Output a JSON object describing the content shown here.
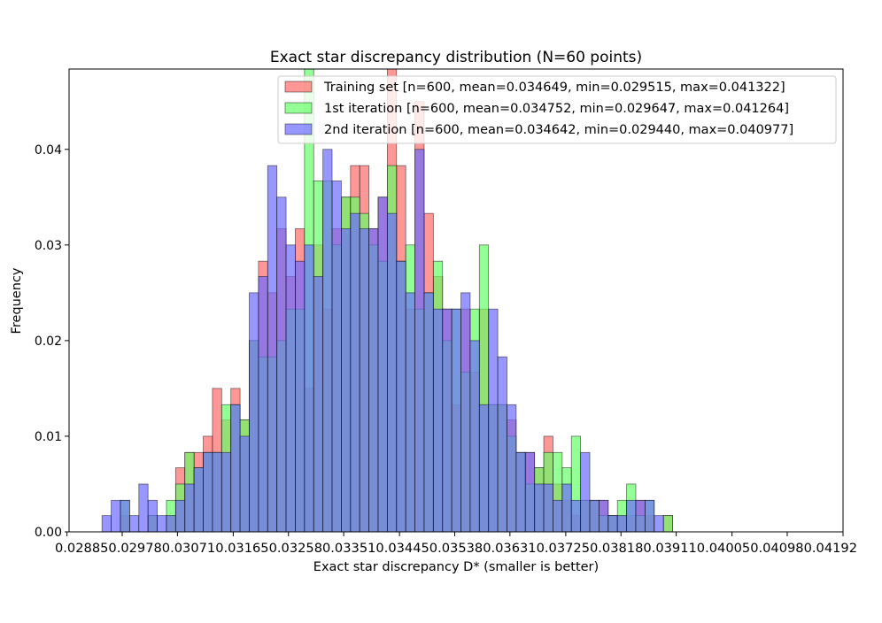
{
  "chart_data": {
    "type": "bar",
    "subtype": "overlaid-histogram",
    "title": "Exact star discrepancy distribution (N=60 points)",
    "xlabel": "Exact star discrepancy D* (smaller is better)",
    "ylabel": "Frequency",
    "xlim": [
      0.028885,
      0.04192
    ],
    "ylim": [
      0,
      0.0484
    ],
    "x_ticks": [
      "0.02885",
      "0.02978",
      "0.03071",
      "0.03165",
      "0.03258",
      "0.03351",
      "0.03445",
      "0.03538",
      "0.03631",
      "0.03725",
      "0.03818",
      "0.03911",
      "0.04005",
      "0.04098",
      "0.04192"
    ],
    "x_tick_values": [
      0.02885,
      0.02978,
      0.03071,
      0.03165,
      0.03258,
      0.03351,
      0.03445,
      0.03538,
      0.03631,
      0.03725,
      0.03818,
      0.03911,
      0.04005,
      0.04098,
      0.04192
    ],
    "x_tick_text": "0.028850.029780.030710.031650.032580.033510.034450.035380.036310.037250.038180.039110.040050.040980.04192",
    "y_ticks": [
      0.0,
      0.01,
      0.02,
      0.03,
      0.04
    ],
    "y_tick_labels": [
      "0.00",
      "0.01",
      "0.02",
      "0.03",
      "0.04"
    ],
    "legend_position": "top-right",
    "grid": false,
    "bin_start": 0.02944,
    "bin_width": 0.000155,
    "series": [
      {
        "name": "Training set [n=600, mean=0.034649, min=0.029515, max=0.041322]",
        "color": "#ff6b6b",
        "values": [
          0,
          0,
          0.0017,
          0,
          0,
          0.0017,
          0,
          0.0017,
          0.0067,
          0.0083,
          0.0083,
          0.01,
          0.015,
          0.0117,
          0.015,
          0.0117,
          0.02,
          0.0283,
          0.025,
          0.0317,
          0.0267,
          0.0317,
          0.015,
          0.03,
          0.0233,
          0.0317,
          0.035,
          0.0383,
          0.0383,
          0.0317,
          0.035,
          0.05,
          0.0383,
          0.0233,
          0.045,
          0.0333,
          0.0267,
          0.0233,
          0.0133,
          0.0233,
          0.0167,
          0.0233,
          0.0133,
          0.0133,
          0.0117,
          0.0083,
          0.0083,
          0.0067,
          0.01,
          0.005,
          0.0033,
          0.0017,
          0.0033,
          0.0033,
          0.0033,
          0.0017,
          0.0017,
          0.0017,
          0.0033,
          0.0017,
          0,
          0.0017,
          0
        ]
      },
      {
        "name": "1st iteration [n=600, mean=0.034752, min=0.029647, max=0.041264]",
        "color": "#66ff66",
        "values": [
          0,
          0,
          0.0033,
          0,
          0,
          0.0017,
          0,
          0.0033,
          0.005,
          0.0083,
          0.0067,
          0.0083,
          0.0083,
          0.0133,
          0.0133,
          0.0117,
          0.02,
          0.0183,
          0.0183,
          0.02,
          0.0233,
          0.0233,
          0.05,
          0.0367,
          0.0367,
          0.03,
          0.035,
          0.035,
          0.0333,
          0.03,
          0.0283,
          0.0383,
          0.0283,
          0.03,
          0.0233,
          0.025,
          0.0283,
          0.02,
          0.0233,
          0.0167,
          0.0233,
          0.03,
          0.0133,
          0.0133,
          0.01,
          0.0083,
          0.005,
          0.0067,
          0.0083,
          0.0083,
          0.0067,
          0.01,
          0.0033,
          0.0033,
          0.0017,
          0.0017,
          0.0033,
          0.005,
          0.0017,
          0.0033,
          0,
          0.0017,
          0
        ]
      },
      {
        "name": "2nd iteration [n=600, mean=0.034642, min=0.029440, max=0.040977]",
        "color": "#6b6bff",
        "values": [
          0.0017,
          0.0033,
          0.0033,
          0.0017,
          0.005,
          0.0033,
          0.0017,
          0.0017,
          0.0033,
          0.005,
          0.0067,
          0.0083,
          0.0083,
          0.0083,
          0.0133,
          0.01,
          0.025,
          0.0267,
          0.0383,
          0.035,
          0.03,
          0.0283,
          0.03,
          0.0267,
          0.04,
          0.0367,
          0.0317,
          0.0333,
          0.0317,
          0.0317,
          0.035,
          0.0333,
          0.0283,
          0.025,
          0.04,
          0.025,
          0.0233,
          0.0233,
          0.0233,
          0.025,
          0.02,
          0.0133,
          0.0233,
          0.0183,
          0.0133,
          0.0083,
          0.0083,
          0.005,
          0.005,
          0.0033,
          0.005,
          0.0033,
          0.0083,
          0.0033,
          0.0033,
          0.0017,
          0.0017,
          0.0033,
          0.0033,
          0.0033,
          0.0017,
          0,
          0
        ]
      }
    ]
  }
}
